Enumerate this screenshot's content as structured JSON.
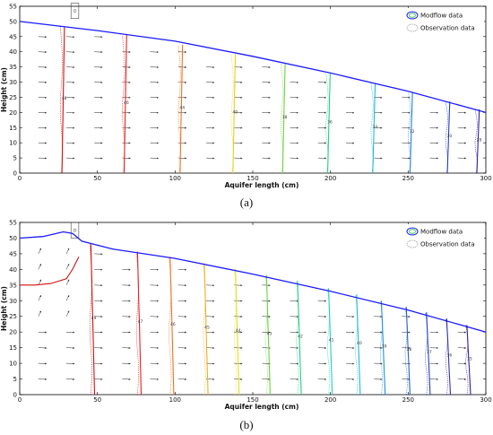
{
  "chart_data": [
    {
      "id": "a",
      "type": "line",
      "caption": "(a)",
      "xlabel": "Aquifer length (cm)",
      "ylabel": "Height (cm)",
      "xlim": [
        0,
        300
      ],
      "ylim": [
        0,
        55
      ],
      "xticks": [
        "0",
        "50",
        "100",
        "150",
        "200",
        "250",
        "300"
      ],
      "yticks": [
        "0",
        "5",
        "10",
        "15",
        "20",
        "25",
        "30",
        "35",
        "40",
        "45",
        "50",
        "55"
      ],
      "legend": {
        "position": "top-right",
        "entries": [
          "Modflow data",
          "Observation data"
        ]
      },
      "water_table": {
        "x": [
          0,
          50,
          100,
          150,
          200,
          250,
          300
        ],
        "y": [
          50,
          47,
          43.5,
          38.5,
          33,
          27,
          20
        ]
      },
      "contours": [
        {
          "x": 28,
          "top": 48.4,
          "color": "#d01010",
          "label": "48"
        },
        {
          "x": 68,
          "top": 45.5,
          "color": "#e82020",
          "label": "46"
        },
        {
          "x": 104,
          "top": 42.3,
          "color": "#f07020",
          "label": "44"
        },
        {
          "x": 138,
          "top": 39.2,
          "color": "#e8d020",
          "label": "40"
        },
        {
          "x": 170,
          "top": 36.0,
          "color": "#70d040",
          "label": "38"
        },
        {
          "x": 199,
          "top": 32.8,
          "color": "#20d080",
          "label": "36"
        },
        {
          "x": 228,
          "top": 29.5,
          "color": "#20b8d8",
          "label": "34"
        },
        {
          "x": 252,
          "top": 26.6,
          "color": "#2080e0",
          "label": "32"
        },
        {
          "x": 276,
          "top": 23.6,
          "color": "#2040c0",
          "label": "30"
        },
        {
          "x": 295,
          "top": 21.0,
          "color": "#3020a0",
          "label": "28"
        }
      ],
      "box": {
        "x1": 33,
        "x2": 38,
        "y1": 51,
        "y2": 56
      }
    },
    {
      "id": "b",
      "type": "line",
      "caption": "(b)",
      "xlabel": "Aquifer length (cm)",
      "ylabel": "Height (cm)",
      "xlim": [
        0,
        300
      ],
      "ylim": [
        0,
        55
      ],
      "xticks": [
        "0",
        "50",
        "100",
        "150",
        "200",
        "250",
        "300"
      ],
      "yticks": [
        "0",
        "5",
        "10",
        "15",
        "20",
        "25",
        "30",
        "35",
        "40",
        "45",
        "50",
        "55"
      ],
      "legend": {
        "position": "top-right",
        "entries": [
          "Modflow data",
          "Observation data"
        ]
      },
      "water_table": {
        "x": [
          0,
          15,
          28,
          34,
          40,
          60,
          100,
          150,
          200,
          250,
          300
        ],
        "y": [
          50,
          50.5,
          52,
          51.5,
          49,
          46.5,
          43.5,
          38.5,
          33,
          27,
          20
        ]
      },
      "mound": {
        "x": [
          0,
          10,
          20,
          30,
          34,
          38
        ],
        "y": [
          35,
          35,
          35.5,
          37,
          40,
          44
        ]
      },
      "contours": [
        {
          "x": 47,
          "top": 48.0,
          "color": "#d01010",
          "label": "49"
        },
        {
          "x": 77,
          "top": 45.7,
          "color": "#e82020",
          "label": "47"
        },
        {
          "x": 98,
          "top": 44.0,
          "color": "#f07020",
          "label": "46"
        },
        {
          "x": 120,
          "top": 42.0,
          "color": "#f0b020",
          "label": "45"
        },
        {
          "x": 140,
          "top": 40.2,
          "color": "#e0e020",
          "label": "44"
        },
        {
          "x": 160,
          "top": 38.2,
          "color": "#70d040",
          "label": "43"
        },
        {
          "x": 180,
          "top": 36.3,
          "color": "#20d080",
          "label": "42"
        },
        {
          "x": 200,
          "top": 34.0,
          "color": "#20d0c0",
          "label": "41"
        },
        {
          "x": 218,
          "top": 32.0,
          "color": "#20b8d8",
          "label": "40"
        },
        {
          "x": 234,
          "top": 30.0,
          "color": "#2090e0",
          "label": "39"
        },
        {
          "x": 250,
          "top": 28.0,
          "color": "#2060d0",
          "label": "38"
        },
        {
          "x": 263,
          "top": 26.3,
          "color": "#2040c0",
          "label": "37"
        },
        {
          "x": 276,
          "top": 24.3,
          "color": "#3030b0",
          "label": "36"
        },
        {
          "x": 289,
          "top": 22.2,
          "color": "#3020a0",
          "label": "35"
        }
      ],
      "box": {
        "x1": 33,
        "x2": 38,
        "y1": 50,
        "y2": 55
      }
    }
  ]
}
